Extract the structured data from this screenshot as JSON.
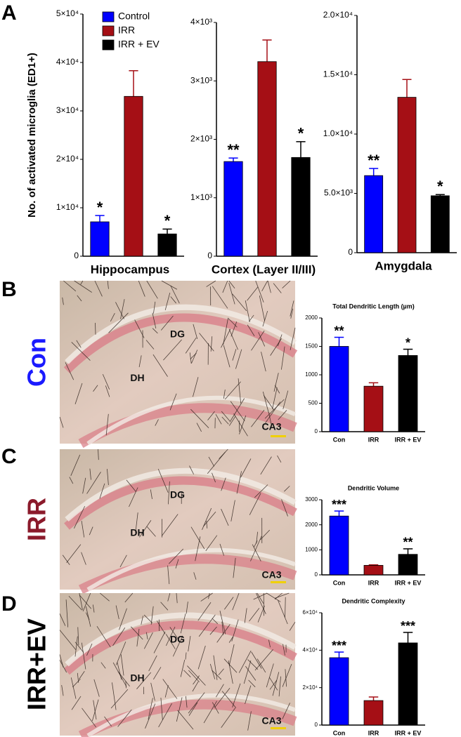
{
  "chart_data": [
    {
      "type": "bar",
      "ylabel": "No. of activated  microglia (ED1+)",
      "xlabel": "Hippocampus",
      "legend": [
        "Control",
        "IRR",
        "IRR + EV"
      ],
      "values": [
        7100,
        33000,
        4600
      ],
      "errors": [
        1300,
        5300,
        1000
      ],
      "colors": [
        "#0000ff",
        "#a50f15",
        "#000000"
      ],
      "significance": [
        "*",
        null,
        "*"
      ],
      "ylim": [
        0,
        50000
      ],
      "yticks": [
        0,
        {
          "value": 10000,
          "label": "1×10⁴"
        },
        {
          "value": 20000,
          "label": "2×10⁴"
        },
        {
          "value": 30000,
          "label": "3×10⁴"
        },
        {
          "value": 40000,
          "label": "4×10⁴"
        },
        {
          "value": 50000,
          "label": "5×10⁴"
        }
      ]
    },
    {
      "type": "bar",
      "xlabel": "Cortex (Layer II/III)",
      "values": [
        1620,
        3330,
        1690
      ],
      "errors": [
        60,
        370,
        270
      ],
      "colors": [
        "#0000ff",
        "#a50f15",
        "#000000"
      ],
      "significance": [
        "**",
        null,
        "*"
      ],
      "ylim": [
        0,
        4000
      ],
      "yticks": [
        0,
        {
          "value": 1000,
          "label": "1×10³"
        },
        {
          "value": 2000,
          "label": "2×10³"
        },
        {
          "value": 3000,
          "label": "3×10³"
        },
        {
          "value": 4000,
          "label": "4×10³"
        }
      ]
    },
    {
      "type": "bar",
      "xlabel": "Amygdala",
      "values": [
        6500,
        13100,
        4800
      ],
      "errors": [
        600,
        1500,
        100
      ],
      "colors": [
        "#0000ff",
        "#a50f15",
        "#000000"
      ],
      "significance": [
        "**",
        null,
        "*"
      ],
      "ylim": [
        0,
        20000
      ],
      "yticks": [
        0,
        {
          "value": 5000,
          "label": "5.0×10³"
        },
        {
          "value": 10000,
          "label": "1.0×10⁴"
        },
        {
          "value": 15000,
          "label": "1.5×10⁴"
        },
        {
          "value": 20000,
          "label": "2.0×10⁴"
        }
      ]
    },
    {
      "type": "bar",
      "title": "Total Dendritic Length (µm)",
      "categories": [
        "Con",
        "IRR",
        "IRR + EV"
      ],
      "values": [
        1500,
        800,
        1340
      ],
      "errors": [
        160,
        60,
        110
      ],
      "colors": [
        "#0000ff",
        "#a50f15",
        "#000000"
      ],
      "significance": [
        "**",
        null,
        "*"
      ],
      "ylim": [
        0,
        2000
      ],
      "yticks": [
        0,
        500,
        1000,
        1500,
        2000
      ]
    },
    {
      "type": "bar",
      "title": "Dendritic Volume",
      "categories": [
        "Con",
        "IRR",
        "IRR + EV"
      ],
      "values": [
        2350,
        380,
        820
      ],
      "errors": [
        200,
        20,
        220
      ],
      "colors": [
        "#0000ff",
        "#a50f15",
        "#000000"
      ],
      "significance": [
        "***",
        null,
        "**"
      ],
      "ylim": [
        0,
        3000
      ],
      "yticks": [
        0,
        1000,
        2000,
        3000
      ]
    },
    {
      "type": "bar",
      "title": "Dendritic  Complexity",
      "categories": [
        "Con",
        "IRR",
        "IRR + EV"
      ],
      "values": [
        36000,
        13100,
        43900
      ],
      "errors": [
        3000,
        1900,
        5600
      ],
      "colors": [
        "#0000ff",
        "#a50f15",
        "#000000"
      ],
      "significance": [
        "***",
        null,
        "***"
      ],
      "ylim": [
        0,
        60000
      ],
      "yticks": [
        0,
        {
          "value": 20000,
          "label": "2×10⁴"
        },
        {
          "value": 40000,
          "label": "4×10⁴"
        },
        {
          "value": 60000,
          "label": "6×10⁴"
        }
      ]
    }
  ],
  "panels": [
    {
      "letter": "A"
    },
    {
      "letter": "B",
      "condition": "Con",
      "condition_color": "#1a1aff",
      "regions": [
        "DG",
        "DH",
        "CA3"
      ]
    },
    {
      "letter": "C",
      "condition": "IRR",
      "condition_color": "#8b1a2b",
      "regions": [
        "DG",
        "DH",
        "CA3"
      ]
    },
    {
      "letter": "D",
      "condition": "IRR+EV",
      "condition_color": "#000000",
      "regions": [
        "DG",
        "DH",
        "CA3"
      ]
    }
  ]
}
